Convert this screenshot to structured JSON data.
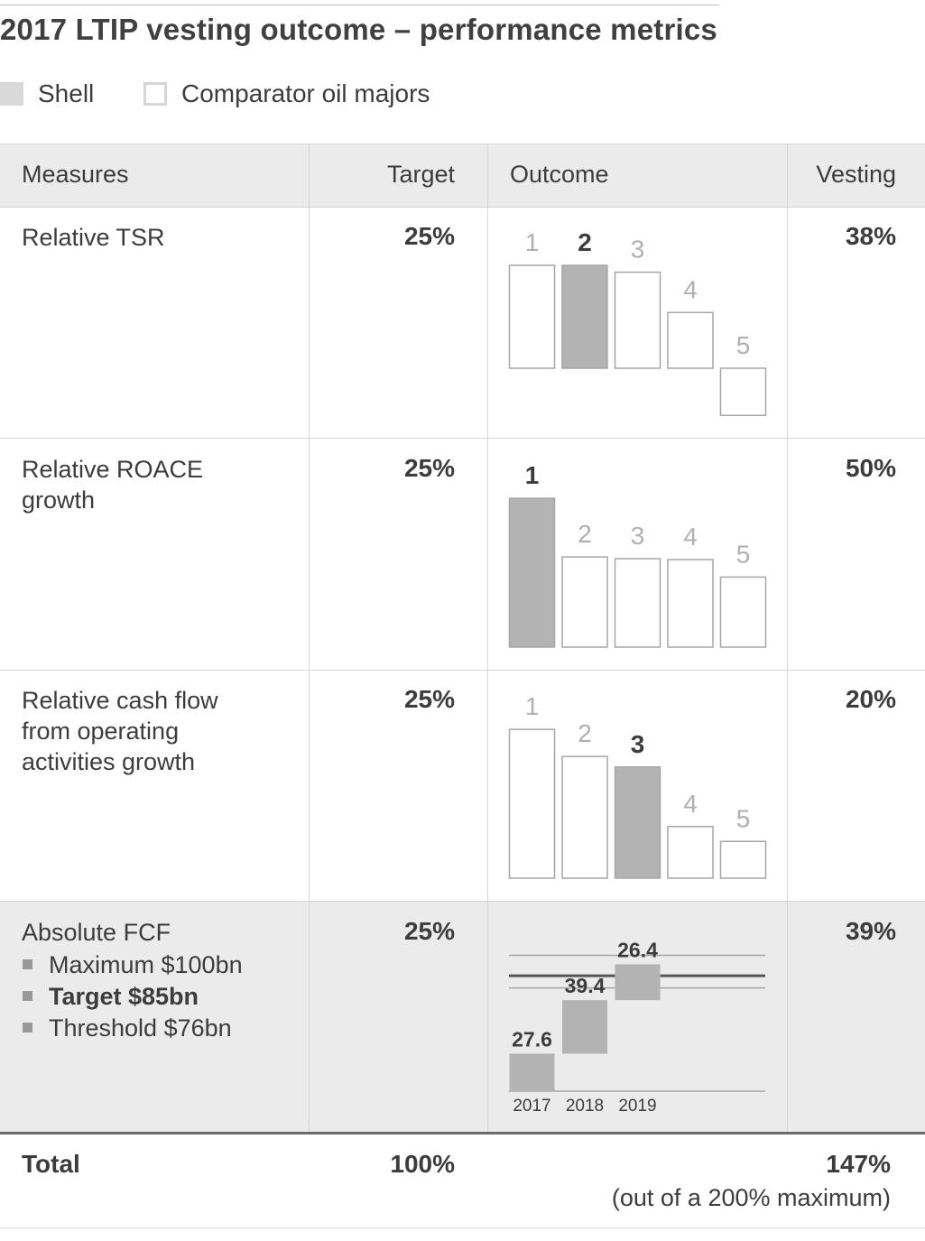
{
  "title": "2017 LTIP vesting outcome – performance metrics",
  "legend": [
    {
      "label": "Shell",
      "color": "#d9d9d9",
      "filled": true
    },
    {
      "label": "Comparator oil majors",
      "color": "#ffffff",
      "filled": false
    }
  ],
  "headers": {
    "measures": "Measures",
    "target": "Target",
    "outcome": "Outcome",
    "vesting": "Vesting"
  },
  "rows": [
    {
      "measure": [
        "Relative TSR"
      ],
      "target": "25%",
      "vesting": "38%"
    },
    {
      "measure": [
        "Relative ROACE",
        "growth"
      ],
      "target": "25%",
      "vesting": "50%"
    },
    {
      "measure": [
        "Relative cash flow",
        "from operating",
        "activities growth"
      ],
      "target": "25%",
      "vesting": "20%"
    },
    {
      "measure": [
        "Absolute FCF"
      ],
      "bullets": [
        {
          "label": "Maximum $100bn",
          "bold": false
        },
        {
          "label": "Target $85bn",
          "bold": true
        },
        {
          "label": "Threshold $76bn",
          "bold": false
        }
      ],
      "target": "25%",
      "vesting": "39%"
    }
  ],
  "total": {
    "label": "Total",
    "target": "100%",
    "vesting": "147%",
    "note": "(out of a 200% maximum)"
  },
  "colors": {
    "shell": "#b3b3b3",
    "comparator": "#ffffff",
    "bar_border": "#a6a6a6",
    "label_dim": "#b0b0b0",
    "label_strong": "#3c3c3c",
    "shaded_row": "#ebebeb",
    "header_bg": "#ebebeb"
  },
  "chart_data": [
    {
      "type": "bar",
      "categories": [
        "1",
        "2",
        "3",
        "4",
        "5"
      ],
      "values": [
        1.2,
        1.2,
        1.12,
        0.65,
        -0.55
      ],
      "shell_index": 1
    },
    {
      "type": "bar",
      "categories": [
        "1",
        "2",
        "3",
        "4",
        "5"
      ],
      "values": [
        1.7,
        1.03,
        1.01,
        1.0,
        0.8
      ],
      "shell_index": 0
    },
    {
      "type": "bar",
      "categories": [
        "1",
        "2",
        "3",
        "4",
        "5"
      ],
      "values": [
        1.7,
        1.39,
        1.27,
        0.59,
        0.42
      ],
      "shell_index": 2
    },
    {
      "type": "bar",
      "categories": [
        "2017",
        "2018",
        "2019"
      ],
      "values": [
        27.6,
        39.4,
        26.4
      ],
      "value_labels": [
        "27.6",
        "39.4",
        "26.4"
      ],
      "reference_lines": {
        "maximum": 100,
        "target": 85,
        "threshold": 76
      }
    }
  ]
}
